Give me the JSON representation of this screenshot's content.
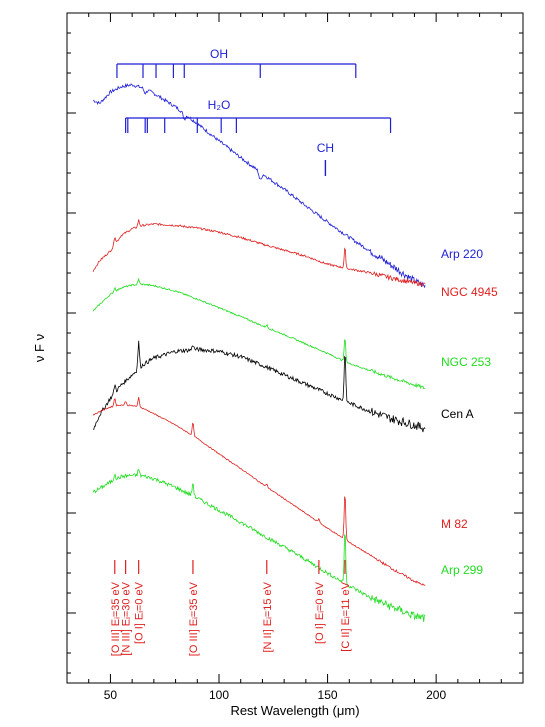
{
  "chart_data": {
    "type": "line",
    "title": "",
    "xlabel": "Rest Wavelength (μm)",
    "ylabel": "ν F ν",
    "xlim": [
      30,
      240
    ],
    "x_ticks": [
      50,
      100,
      150,
      200
    ],
    "grid": false,
    "legend": "labels at right end of each spectrum",
    "molecules": [
      {
        "name": "OH",
        "label_x": 100,
        "bar_x_start": 53,
        "bar_x_end": 163,
        "lines_um": [
          53,
          65,
          71,
          79,
          84,
          119,
          163
        ]
      },
      {
        "name": "H₂O",
        "label_x": 100,
        "bar_x_start": 57,
        "bar_x_end": 179,
        "lines_um": [
          57,
          58,
          66,
          67,
          75,
          90,
          101,
          108,
          179
        ]
      },
      {
        "name": "CH",
        "label_x": 149,
        "lines_um": [
          149
        ]
      }
    ],
    "series": [
      {
        "name": "Arp 220",
        "color": "#1f1fd6",
        "x": [
          42,
          45,
          50,
          55,
          60,
          65,
          70,
          80,
          90,
          100,
          110,
          120,
          130,
          140,
          150,
          160,
          170,
          180,
          190,
          195
        ],
        "y": [
          0.87,
          0.865,
          0.882,
          0.89,
          0.893,
          0.888,
          0.88,
          0.86,
          0.835,
          0.809,
          0.784,
          0.76,
          0.737,
          0.712,
          0.688,
          0.665,
          0.644,
          0.622,
          0.6,
          0.592
        ]
      },
      {
        "name": "NGC 4945",
        "color": "#e02020",
        "x": [
          42,
          45,
          50,
          55,
          60,
          65,
          70,
          80,
          90,
          100,
          110,
          120,
          130,
          140,
          150,
          160,
          170,
          180,
          190,
          195
        ],
        "y": [
          0.615,
          0.63,
          0.645,
          0.668,
          0.678,
          0.683,
          0.685,
          0.683,
          0.679,
          0.673,
          0.665,
          0.655,
          0.646,
          0.637,
          0.625,
          0.618,
          0.612,
          0.604,
          0.597,
          0.595
        ]
      },
      {
        "name": "NGC 253",
        "color": "#22dd22",
        "x": [
          42,
          45,
          50,
          55,
          60,
          65,
          70,
          80,
          90,
          100,
          110,
          120,
          130,
          140,
          150,
          160,
          170,
          180,
          190,
          195
        ],
        "y": [
          0.555,
          0.565,
          0.58,
          0.59,
          0.594,
          0.595,
          0.593,
          0.585,
          0.573,
          0.56,
          0.547,
          0.533,
          0.52,
          0.506,
          0.492,
          0.477,
          0.466,
          0.455,
          0.445,
          0.44
        ]
      },
      {
        "name": "Cen A",
        "color": "#000000",
        "x": [
          42,
          45,
          50,
          55,
          60,
          65,
          70,
          80,
          90,
          100,
          110,
          120,
          130,
          140,
          150,
          160,
          170,
          180,
          190,
          195
        ],
        "y": [
          0.378,
          0.4,
          0.425,
          0.445,
          0.46,
          0.475,
          0.485,
          0.495,
          0.498,
          0.495,
          0.487,
          0.474,
          0.46,
          0.446,
          0.432,
          0.418,
          0.405,
          0.394,
          0.385,
          0.38
        ]
      },
      {
        "name": "M 82",
        "color": "#e02020",
        "x": [
          42,
          45,
          50,
          55,
          60,
          65,
          70,
          80,
          90,
          100,
          110,
          120,
          130,
          140,
          150,
          160,
          170,
          180,
          190,
          195
        ],
        "y": [
          0.4,
          0.405,
          0.412,
          0.415,
          0.414,
          0.41,
          0.402,
          0.385,
          0.365,
          0.342,
          0.32,
          0.297,
          0.275,
          0.253,
          0.231,
          0.21,
          0.19,
          0.17,
          0.152,
          0.145
        ]
      },
      {
        "name": "Arp 299",
        "color": "#22dd22",
        "x": [
          42,
          45,
          50,
          55,
          60,
          65,
          70,
          80,
          90,
          100,
          110,
          120,
          130,
          140,
          150,
          160,
          170,
          180,
          190,
          195
        ],
        "y": [
          0.285,
          0.29,
          0.3,
          0.308,
          0.31,
          0.309,
          0.305,
          0.292,
          0.276,
          0.258,
          0.24,
          0.221,
          0.203,
          0.184,
          0.164,
          0.145,
          0.127,
          0.113,
          0.1,
          0.096
        ]
      }
    ],
    "emission_lines": [
      {
        "label": "[O III] Eᵢ=35 eV",
        "x": 52
      },
      {
        "label": "[N III] Eᵢ=30 eV",
        "x": 57
      },
      {
        "label": "[O I] Eᵢ=0 eV",
        "x": 63
      },
      {
        "label": "[O III] Eᵢ=35 eV",
        "x": 88
      },
      {
        "label": "[N II] Eᵢ=15 eV",
        "x": 122
      },
      {
        "label": "[O I] Eᵢ=0 eV",
        "x": 146
      },
      {
        "label": "[C II] Eᵢ=11 eV",
        "x": 158
      }
    ]
  }
}
